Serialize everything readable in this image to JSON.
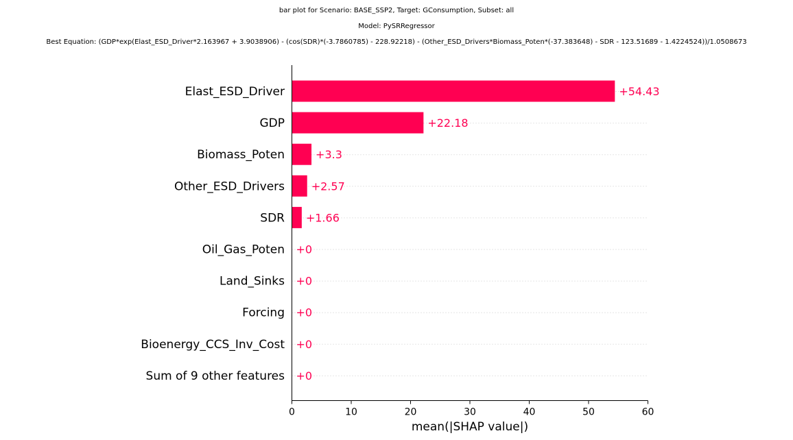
{
  "titles": [
    "bar plot for Scenario: BASE_SSP2, Target: GConsumption, Subset: all",
    "Model: PySRRegressor",
    "Best Equation: (GDP*exp(Elast_ESD_Driver*2.163967 + 3.9038906) - (cos(SDR)*(-3.7860785) - 228.92218) - (Other_ESD_Drivers*Biomass_Poten*(-37.383648) - SDR - 123.51689 - 1.4224524))/1.0508673"
  ],
  "chart_data": {
    "type": "bar",
    "orientation": "horizontal",
    "categories": [
      "Elast_ESD_Driver",
      "GDP",
      "Biomass_Poten",
      "Other_ESD_Drivers",
      "SDR",
      "Oil_Gas_Poten",
      "Land_Sinks",
      "Forcing",
      "Bioenergy_CCS_Inv_Cost",
      "Sum of 9 other features"
    ],
    "values": [
      54.43,
      22.18,
      3.3,
      2.57,
      1.66,
      0,
      0,
      0,
      0,
      0
    ],
    "data_labels": [
      "+54.43",
      "+22.18",
      "+3.3",
      "+2.57",
      "+1.66",
      "+0",
      "+0",
      "+0",
      "+0",
      "+0"
    ],
    "xlabel": "mean(|SHAP value|)",
    "ylabel": "",
    "xlim": [
      0,
      60
    ],
    "xticks": [
      0,
      10,
      20,
      30,
      40,
      50,
      60
    ],
    "grid": "dotted row guides",
    "bar_color": "#ff0052",
    "label_color": "#ff0052"
  }
}
